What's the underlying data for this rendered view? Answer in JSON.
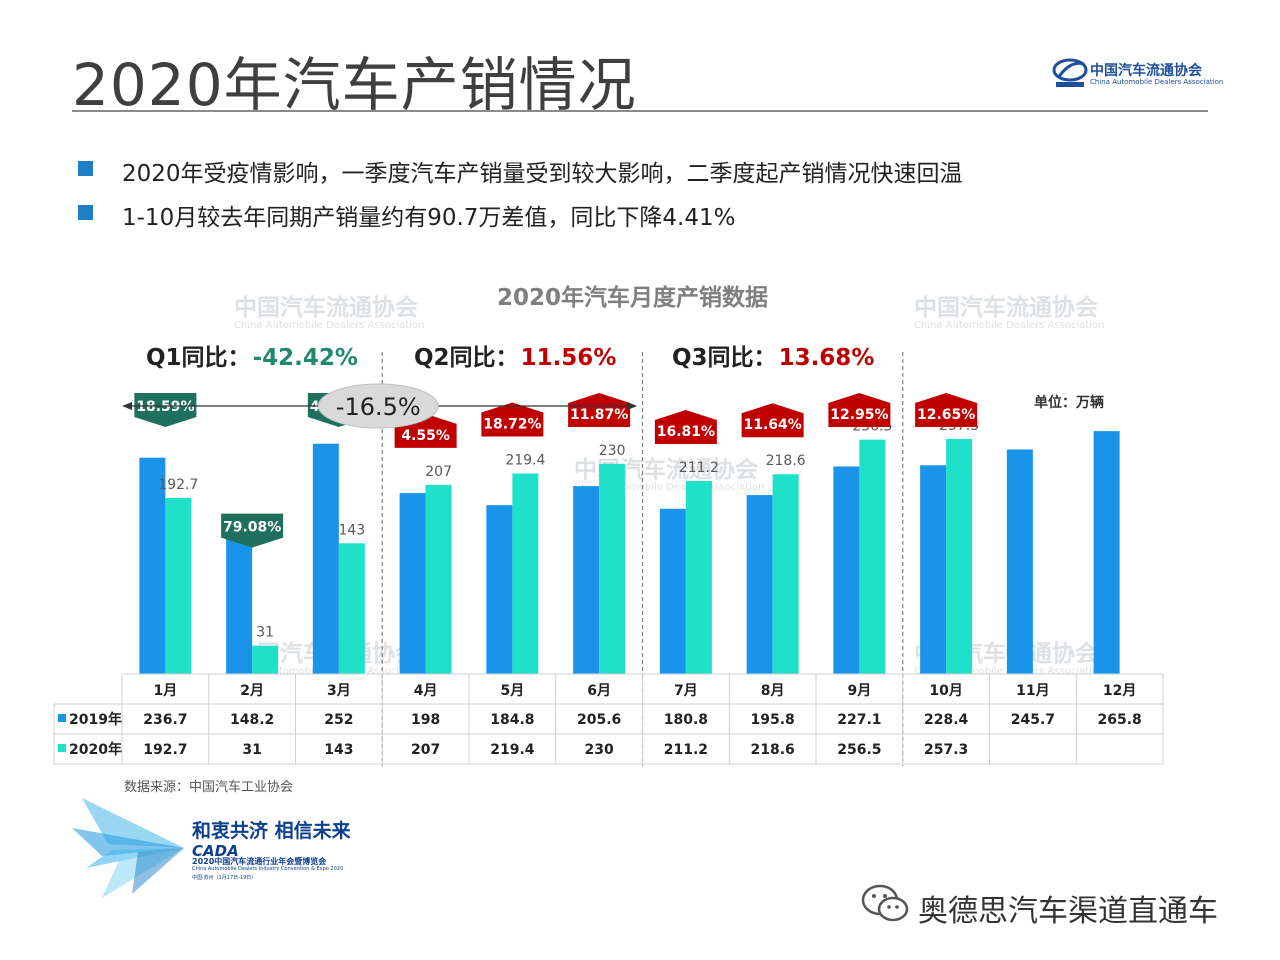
{
  "slide": {
    "title": "2020年汽车产销情况",
    "logo": {
      "name_cn": "中国汽车流通协会",
      "name_en": "China Automobile Dealers Association",
      "abbr": "CADA"
    },
    "bullets": [
      "2020年受疫情影响，一季度汽车产销量受到较大影响，二季度起产销情况快速回温",
      "1-10月较去年同期产销量约有90.7万差值，同比下降4.41%"
    ],
    "source_note": "数据来源：中国汽车工业协会",
    "expo": {
      "slogan": "和衷共济 相信未来",
      "brand": "CADA",
      "title_cn": "2020中国汽车流通行业年会暨博览会",
      "title_en": "China Automobile Dealers Industry Convention & Expo 2020",
      "place": "中国·苏州（1月17日-19日）"
    },
    "channel_name": "奥德思汽车渠道直通车",
    "colors": {
      "accent": "#1f7fc6",
      "series_2019": "#1a94ea",
      "series_2020": "#1fe0c8",
      "decline_badge": "#1f6f5e",
      "growth_badge": "#c00000",
      "q1_value": "#1f8a6e",
      "q_value_up": "#c00000"
    }
  },
  "chart_data": {
    "type": "bar",
    "title": "2020年汽车月度产销数据",
    "unit_label": "单位：万辆",
    "categories": [
      "1月",
      "2月",
      "3月",
      "4月",
      "5月",
      "6月",
      "7月",
      "8月",
      "9月",
      "10月",
      "11月",
      "12月"
    ],
    "series": [
      {
        "name": "2019年",
        "values": [
          236.7,
          148.2,
          252,
          198,
          184.8,
          205.6,
          180.8,
          195.8,
          227.1,
          228.4,
          245.7,
          265.8
        ]
      },
      {
        "name": "2020年",
        "values": [
          192.7,
          31,
          143,
          207,
          219.4,
          230,
          211.2,
          218.6,
          256.5,
          257.3,
          null,
          null
        ]
      }
    ],
    "bar_labels_2020": [
      "192.7",
      "31",
      "143",
      "207",
      "219.4",
      "230",
      "211.2",
      "218.6",
      "256.5",
      "257.3"
    ],
    "table_2019": [
      "236.7",
      "148.2",
      "252",
      "198",
      "184.8",
      "205.6",
      "180.8",
      "195.8",
      "227.1",
      "228.4",
      "245.7",
      "265.8"
    ],
    "table_2020": [
      "192.7",
      "31",
      "143",
      "207",
      "219.4",
      "230",
      "211.2",
      "218.6",
      "256.5",
      "257.3",
      "",
      ""
    ],
    "yoy_badges": [
      {
        "month": "1月",
        "text": "18.59%",
        "dir": "down"
      },
      {
        "month": "2月",
        "text": "79.08%",
        "dir": "down"
      },
      {
        "month": "3月",
        "text": "43.25%",
        "dir": "down"
      },
      {
        "month": "4月",
        "text": "4.55%",
        "dir": "up"
      },
      {
        "month": "5月",
        "text": "18.72%",
        "dir": "up"
      },
      {
        "month": "6月",
        "text": "11.87%",
        "dir": "up"
      },
      {
        "month": "7月",
        "text": "16.81%",
        "dir": "up"
      },
      {
        "month": "8月",
        "text": "11.64%",
        "dir": "up"
      },
      {
        "month": "9月",
        "text": "12.95%",
        "dir": "up"
      },
      {
        "month": "10月",
        "text": "12.65%",
        "dir": "up"
      }
    ],
    "quarters": [
      {
        "label": "Q1同比：",
        "value": "-42.42%",
        "dir": "down"
      },
      {
        "label": "Q2同比：",
        "value": "11.56%",
        "dir": "up"
      },
      {
        "label": "Q3同比：",
        "value": "13.68%",
        "dir": "up"
      }
    ],
    "h1_annotation": "-16.5%",
    "ylim": [
      0,
      290
    ],
    "grid": false,
    "legend": "in-table-left",
    "watermark_cn": "中国汽车流通协会",
    "watermark_en": "China Automobile Dealers Association"
  }
}
